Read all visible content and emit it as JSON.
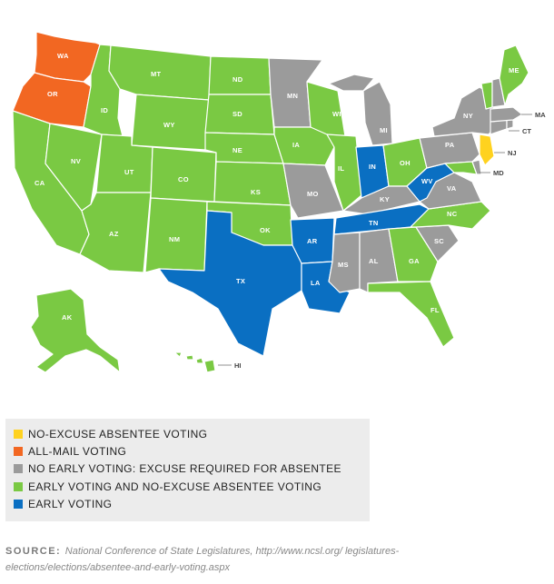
{
  "colors": {
    "no_excuse_absentee": "#FFD21F",
    "all_mail": "#F26722",
    "no_early_voting": "#9B9B9B",
    "early_and_no_excuse": "#7AC943",
    "early_voting": "#0A6FC2"
  },
  "legend": [
    {
      "category": "no_excuse_absentee",
      "label": "NO-EXCUSE ABSENTEE VOTING"
    },
    {
      "category": "all_mail",
      "label": "ALL-MAIL VOTING"
    },
    {
      "category": "no_early_voting",
      "label": "NO EARLY VOTING: EXCUSE REQUIRED FOR ABSENTEE"
    },
    {
      "category": "early_and_no_excuse",
      "label": "EARLY VOTING AND NO-EXCUSE ABSENTEE VOTING"
    },
    {
      "category": "early_voting",
      "label": "EARLY VOTING"
    }
  ],
  "states": {
    "WA": "all_mail",
    "OR": "all_mail",
    "CA": "early_and_no_excuse",
    "NV": "early_and_no_excuse",
    "ID": "early_and_no_excuse",
    "MT": "early_and_no_excuse",
    "WY": "early_and_no_excuse",
    "UT": "early_and_no_excuse",
    "AZ": "early_and_no_excuse",
    "CO": "early_and_no_excuse",
    "NM": "early_and_no_excuse",
    "ND": "early_and_no_excuse",
    "SD": "early_and_no_excuse",
    "NE": "early_and_no_excuse",
    "KS": "early_and_no_excuse",
    "OK": "early_and_no_excuse",
    "IA": "early_and_no_excuse",
    "WI": "early_and_no_excuse",
    "IL": "early_and_no_excuse",
    "OH": "early_and_no_excuse",
    "GA": "early_and_no_excuse",
    "FL": "early_and_no_excuse",
    "NC": "early_and_no_excuse",
    "VT": "early_and_no_excuse",
    "ME": "early_and_no_excuse",
    "MD": "early_and_no_excuse",
    "AK": "early_and_no_excuse",
    "HI": "early_and_no_excuse",
    "MN": "no_early_voting",
    "MO": "no_early_voting",
    "MI": "no_early_voting",
    "KY": "no_early_voting",
    "VA": "no_early_voting",
    "PA": "no_early_voting",
    "NY": "no_early_voting",
    "MS": "no_early_voting",
    "AL": "no_early_voting",
    "SC": "no_early_voting",
    "NH": "no_early_voting",
    "MA": "no_early_voting",
    "CT": "no_early_voting",
    "RI": "no_early_voting",
    "DE": "no_early_voting",
    "TX": "early_voting",
    "AR": "early_voting",
    "LA": "early_voting",
    "IN": "early_voting",
    "TN": "early_voting",
    "WV": "early_voting",
    "NJ": "no_excuse_absentee"
  },
  "state_labels": {
    "WA": "WA",
    "OR": "OR",
    "CA": "CA",
    "NV": "NV",
    "ID": "ID",
    "MT": "MT",
    "WY": "WY",
    "UT": "UT",
    "AZ": "AZ",
    "CO": "CO",
    "NM": "NM",
    "ND": "ND",
    "SD": "SD",
    "NE": "NE",
    "KS": "KS",
    "OK": "OK",
    "TX": "TX",
    "MN": "MN",
    "IA": "IA",
    "MO": "MO",
    "AR": "AR",
    "LA": "LA",
    "WI": "WI",
    "IL": "IL",
    "MI": "MI",
    "IN": "IN",
    "OH": "OH",
    "KY": "KY",
    "TN": "TN",
    "MS": "MS",
    "AL": "AL",
    "GA": "GA",
    "FL": "FL",
    "SC": "SC",
    "NC": "NC",
    "VA": "VA",
    "WV": "WV",
    "PA": "PA",
    "NY": "NY",
    "ME": "ME",
    "AK": "AK",
    "HI": "HI",
    "NJ": "NJ",
    "MD": "MD",
    "CT": "CT",
    "MA": "MA"
  },
  "source": {
    "label": "SOURCE:",
    "text": "National Conference of State Legislatures, http://www.ncsl.org/ legislatures-elections/elections/absentee-and-early-voting.aspx"
  }
}
